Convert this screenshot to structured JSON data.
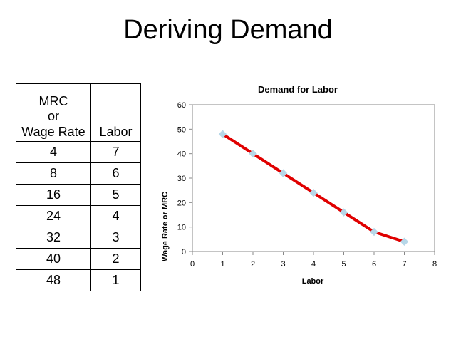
{
  "slide": {
    "title": "Deriving Demand"
  },
  "table": {
    "header": {
      "col1_lines": [
        "MRC",
        "or",
        "Wage Rate"
      ],
      "col2": "Labor"
    },
    "rows": [
      {
        "wage": "4",
        "labor": "7"
      },
      {
        "wage": "8",
        "labor": "6"
      },
      {
        "wage": "16",
        "labor": "5"
      },
      {
        "wage": "24",
        "labor": "4"
      },
      {
        "wage": "32",
        "labor": "3"
      },
      {
        "wage": "40",
        "labor": "2"
      },
      {
        "wage": "48",
        "labor": "1"
      }
    ]
  },
  "chart_data": {
    "type": "line",
    "title": "Demand for Labor",
    "xlabel": "Labor",
    "ylabel": "Wage Rate or MRC",
    "x": [
      1,
      2,
      3,
      4,
      5,
      6,
      7
    ],
    "series": [
      {
        "values": [
          48,
          40,
          32,
          24,
          16,
          8,
          4
        ]
      }
    ],
    "xlim": [
      0,
      8
    ],
    "ylim": [
      0,
      60
    ],
    "xticks": [
      "0",
      "1",
      "2",
      "3",
      "4",
      "5",
      "6",
      "7",
      "8"
    ],
    "yticks": [
      "0",
      "10",
      "20",
      "30",
      "40",
      "50",
      "60"
    ],
    "grid": false,
    "legend": false,
    "line_color": "#e00000",
    "marker_color": "#b7d7e8",
    "marker": "diamond"
  }
}
